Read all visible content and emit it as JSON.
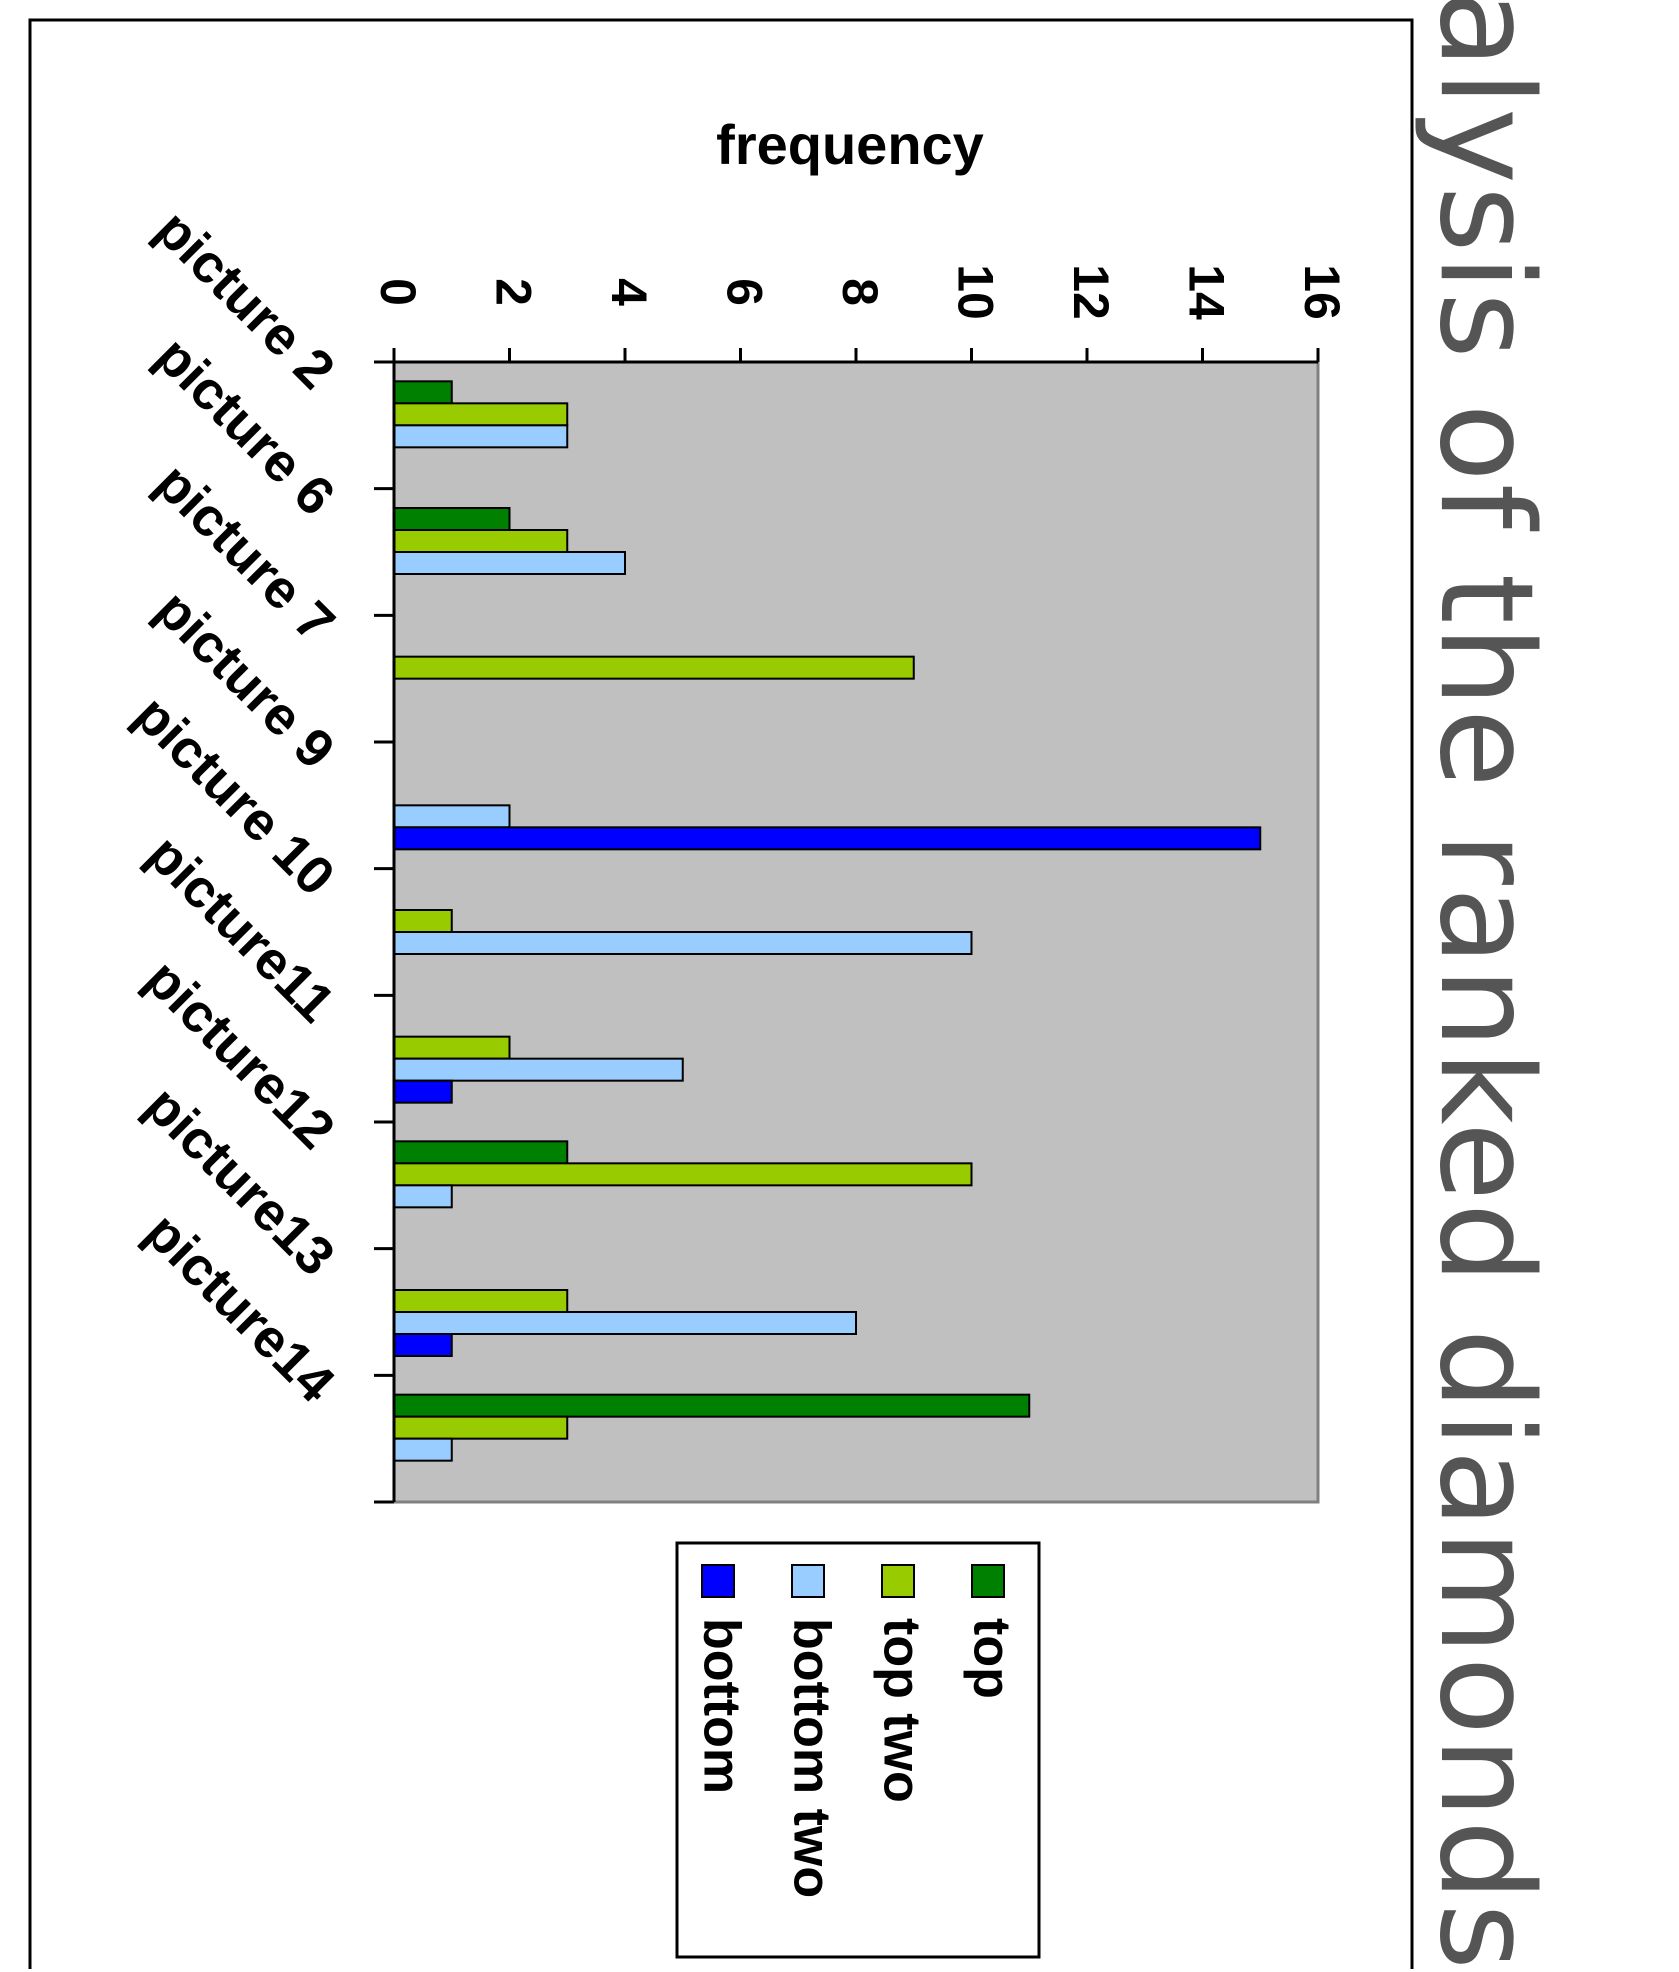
{
  "side_title": "alysis of the ranked diamonds",
  "chart_data": {
    "type": "bar",
    "orientation": "horizontal-rotated",
    "title": "",
    "ylabel": "frequency",
    "xlabel": "",
    "ylim": [
      0,
      16
    ],
    "yticks": [
      0,
      2,
      4,
      6,
      8,
      10,
      12,
      14,
      16
    ],
    "grid": false,
    "plot_background": "#c0c0c0",
    "legend_position": "bottom",
    "categories": [
      "picture 2",
      "picture 6",
      "picture 7",
      "picture 9",
      "picture 10",
      "picture11",
      "picture12",
      "picture13",
      "picture14"
    ],
    "series": [
      {
        "name": "top",
        "color": "#008000",
        "values": [
          1,
          2,
          0,
          0,
          0,
          0,
          3,
          0,
          11
        ]
      },
      {
        "name": "top two",
        "color": "#99cc00",
        "values": [
          3,
          3,
          9,
          0,
          1,
          2,
          10,
          3,
          3
        ]
      },
      {
        "name": "bottom two",
        "color": "#99ccff",
        "values": [
          3,
          4,
          0,
          2,
          10,
          5,
          1,
          8,
          1
        ]
      },
      {
        "name": "bottom",
        "color": "#0000ff",
        "values": [
          0,
          0,
          0,
          15,
          0,
          1,
          0,
          1,
          0
        ]
      }
    ]
  }
}
